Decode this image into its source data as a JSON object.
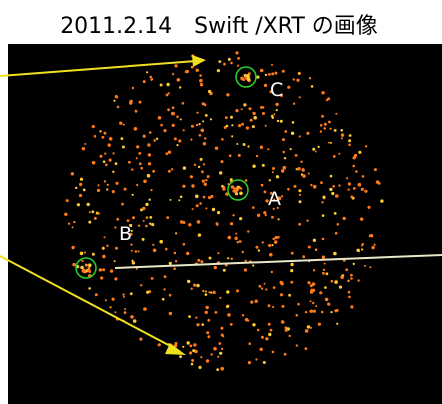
{
  "title": "2011.2.14　Swift /XRT の画像",
  "sources": [
    {
      "label": "A"
    },
    {
      "label": "B"
    },
    {
      "label": "C"
    }
  ]
}
